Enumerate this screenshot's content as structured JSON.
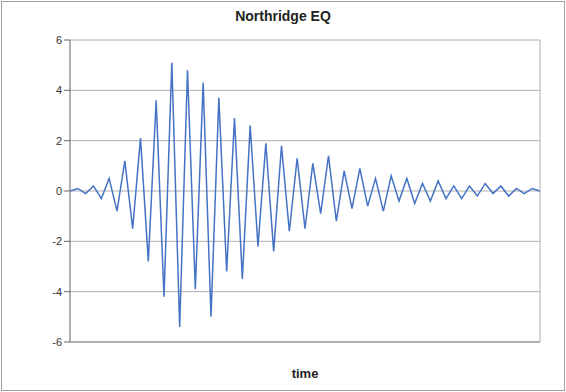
{
  "chart_data": {
    "type": "line",
    "title": "Northridge EQ",
    "x_label": "time",
    "x": [
      0,
      1,
      2,
      3,
      4,
      5,
      6,
      7,
      8,
      9,
      10,
      11,
      12,
      13,
      14,
      15,
      16,
      17,
      18,
      19,
      20,
      21,
      22,
      23,
      24,
      25,
      26,
      27,
      28,
      29,
      30,
      31,
      32,
      33,
      34,
      35,
      36,
      37,
      38,
      39,
      40,
      41,
      42,
      43,
      44,
      45,
      46,
      47,
      48,
      49,
      50,
      51,
      52,
      53,
      54,
      55,
      56,
      57,
      58,
      59,
      60
    ],
    "values": [
      0,
      0.1,
      -0.1,
      0.2,
      -0.3,
      0.5,
      -0.8,
      1.2,
      -1.5,
      2.1,
      -2.8,
      3.6,
      -4.2,
      5.1,
      -5.4,
      4.8,
      -3.9,
      4.3,
      -5.0,
      3.7,
      -3.2,
      2.9,
      -3.5,
      2.6,
      -2.2,
      1.9,
      -2.4,
      1.8,
      -1.6,
      1.3,
      -1.5,
      1.1,
      -0.9,
      1.4,
      -1.2,
      0.8,
      -0.7,
      0.9,
      -0.6,
      0.5,
      -0.8,
      0.6,
      -0.4,
      0.5,
      -0.5,
      0.3,
      -0.4,
      0.4,
      -0.3,
      0.2,
      -0.3,
      0.2,
      -0.2,
      0.3,
      -0.1,
      0.2,
      -0.2,
      0.1,
      -0.1,
      0.1,
      0
    ],
    "color": "#4472c4",
    "xlim": [
      0,
      60
    ],
    "xticks": [
      0,
      10,
      20,
      30,
      40,
      50,
      60
    ],
    "ylim": [
      -6,
      6
    ],
    "yticks": [
      -6,
      -4,
      -2,
      0,
      2,
      4,
      6
    ],
    "grid": true,
    "tick_labels": "y"
  }
}
